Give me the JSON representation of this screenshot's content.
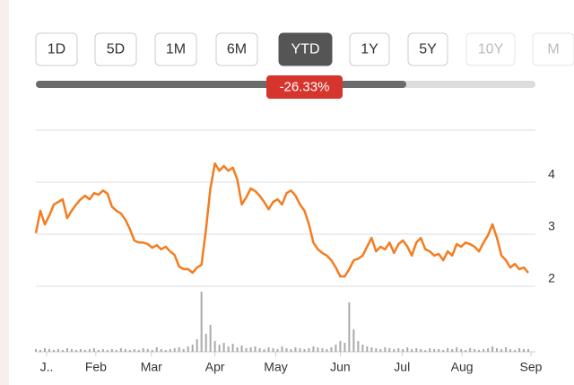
{
  "range_buttons": [
    "1D",
    "5D",
    "1M",
    "6M",
    "YTD",
    "1Y",
    "5Y",
    "10Y",
    "M"
  ],
  "selected_range": "YTD",
  "change_badge": "-26.33%",
  "chart_data": {
    "type": "line",
    "xlim": [
      0,
      111
    ],
    "xticks": [
      {
        "value": 2.4,
        "label": "J.."
      },
      {
        "value": 13.4,
        "label": "Feb"
      },
      {
        "value": 25.8,
        "label": "Mar"
      },
      {
        "value": 40,
        "label": "Apr"
      },
      {
        "value": 53.6,
        "label": "May"
      },
      {
        "value": 68,
        "label": "Jun"
      },
      {
        "value": 81.8,
        "label": "Jul"
      },
      {
        "value": 95.2,
        "label": "Aug"
      },
      {
        "value": 110.6,
        "label": "Sep"
      }
    ],
    "ylim": [
      2,
      5
    ],
    "yticks": [
      2,
      3,
      4
    ],
    "grid": true,
    "y2lim": [
      0,
      70
    ],
    "series": [
      {
        "color": "#f47c20",
        "values": [
          3.02,
          3.45,
          3.19,
          3.36,
          3.57,
          3.62,
          3.67,
          3.31,
          3.45,
          3.57,
          3.67,
          3.74,
          3.67,
          3.79,
          3.76,
          3.84,
          3.78,
          3.53,
          3.45,
          3.4,
          3.28,
          3.1,
          2.88,
          2.84,
          2.84,
          2.81,
          2.74,
          2.79,
          2.71,
          2.76,
          2.67,
          2.6,
          2.38,
          2.33,
          2.33,
          2.26,
          2.36,
          2.41,
          3.1,
          3.88,
          4.36,
          4.22,
          4.31,
          4.22,
          4.28,
          4.05,
          3.57,
          3.71,
          3.88,
          3.83,
          3.74,
          3.62,
          3.48,
          3.62,
          3.67,
          3.57,
          3.79,
          3.84,
          3.74,
          3.57,
          3.45,
          3.19,
          2.84,
          2.71,
          2.64,
          2.59,
          2.5,
          2.36,
          2.19,
          2.19,
          2.33,
          2.5,
          2.53,
          2.59,
          2.76,
          2.93,
          2.67,
          2.76,
          2.71,
          2.84,
          2.64,
          2.81,
          2.88,
          2.76,
          2.59,
          2.84,
          2.93,
          2.71,
          2.67,
          2.59,
          2.62,
          2.5,
          2.67,
          2.59,
          2.81,
          2.76,
          2.84,
          2.81,
          2.76,
          2.67,
          2.84,
          2.98,
          3.19,
          2.93,
          2.59,
          2.5,
          2.36,
          2.43,
          2.33,
          2.36,
          2.26
        ]
      },
      {
        "color": "#aaaaaa",
        "axis": "y2",
        "values": [
          3,
          2,
          4,
          3,
          2,
          3,
          2,
          4,
          3,
          2,
          3,
          2,
          3,
          4,
          2,
          3,
          2,
          3,
          2,
          4,
          3,
          2,
          3,
          2,
          4,
          3,
          2,
          5,
          3,
          2,
          3,
          4,
          5,
          3,
          6,
          8,
          14,
          67,
          20,
          30,
          12,
          8,
          10,
          6,
          9,
          5,
          7,
          4,
          5,
          6,
          4,
          3,
          5,
          4,
          3,
          6,
          4,
          3,
          5,
          4,
          3,
          4,
          6,
          5,
          4,
          3,
          5,
          8,
          12,
          10,
          55,
          25,
          12,
          8,
          6,
          5,
          4,
          3,
          5,
          4,
          3,
          4,
          3,
          5,
          3,
          4,
          3,
          2,
          4,
          3,
          3,
          2,
          4,
          3,
          5,
          3,
          2,
          4,
          3,
          2,
          3,
          4,
          6,
          4,
          3,
          5,
          3,
          2,
          4,
          3,
          3
        ]
      }
    ]
  }
}
